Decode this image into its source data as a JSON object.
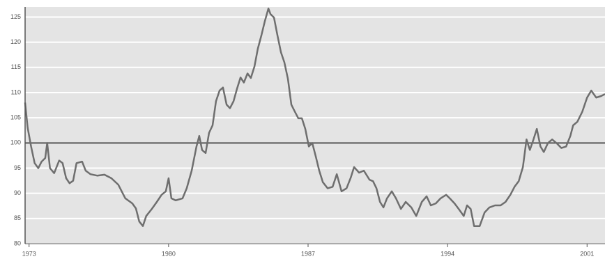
{
  "chart_data": {
    "type": "line",
    "x": [
      1972.8,
      1972.93,
      1973.1,
      1973.28,
      1973.46,
      1973.63,
      1973.81,
      1973.91,
      1974.05,
      1974.26,
      1974.51,
      1974.68,
      1974.86,
      1975.03,
      1975.21,
      1975.38,
      1975.66,
      1975.84,
      1976.08,
      1976.43,
      1976.78,
      1977.13,
      1977.48,
      1977.83,
      1978.18,
      1978.36,
      1978.53,
      1978.71,
      1978.88,
      1979.16,
      1979.41,
      1979.65,
      1979.86,
      1980.0,
      1980.14,
      1980.35,
      1980.7,
      1980.91,
      1981.16,
      1981.4,
      1981.54,
      1981.68,
      1981.86,
      1982.03,
      1982.21,
      1982.38,
      1982.56,
      1982.73,
      1982.91,
      1983.08,
      1983.26,
      1983.43,
      1983.61,
      1983.78,
      1983.96,
      1984.13,
      1984.31,
      1984.48,
      1984.66,
      1984.83,
      1985.01,
      1985.11,
      1985.29,
      1985.46,
      1985.64,
      1985.81,
      1985.99,
      1986.16,
      1986.34,
      1986.51,
      1986.69,
      1986.86,
      1987.04,
      1987.21,
      1987.39,
      1987.56,
      1987.74,
      1987.98,
      1988.23,
      1988.44,
      1988.68,
      1988.93,
      1989.14,
      1989.31,
      1989.56,
      1989.8,
      1990.08,
      1990.26,
      1990.43,
      1990.61,
      1990.78,
      1990.96,
      1991.2,
      1991.41,
      1991.66,
      1991.9,
      1992.18,
      1992.43,
      1992.71,
      1992.95,
      1993.16,
      1993.41,
      1993.65,
      1993.93,
      1994.11,
      1994.35,
      1994.56,
      1994.81,
      1994.98,
      1995.16,
      1995.33,
      1995.61,
      1995.86,
      1996.1,
      1996.38,
      1996.66,
      1996.91,
      1997.15,
      1997.36,
      1997.57,
      1997.78,
      1997.96,
      1998.13,
      1998.31,
      1998.48,
      1998.66,
      1998.83,
      1999.04,
      1999.25,
      1999.46,
      1999.71,
      1999.95,
      2000.16,
      2000.3,
      2000.51,
      2000.76,
      2001.0,
      2001.21,
      2001.46,
      2001.7,
      2001.9
    ],
    "series": [
      {
        "color": "#6e6e6e",
        "values": [
          108,
          103,
          99.3,
          96,
          95,
          96.3,
          97,
          100,
          95,
          94,
          96.5,
          96,
          93,
          92,
          92.5,
          96,
          96.3,
          94.5,
          93.8,
          93.5,
          93.7,
          93,
          91.7,
          89,
          88,
          87,
          84.4,
          83.5,
          85.5,
          86.9,
          88.3,
          89.7,
          90.4,
          93,
          89,
          88.6,
          89,
          91,
          94.5,
          99.3,
          101.4,
          98.6,
          98,
          102,
          103.5,
          108.3,
          110.4,
          111,
          107.6,
          106.9,
          108.3,
          110.7,
          113,
          112,
          113.8,
          112.9,
          115.2,
          118.7,
          121.4,
          124.2,
          126.7,
          125.6,
          124.9,
          121.4,
          118,
          116,
          112.7,
          107.6,
          106.2,
          104.9,
          104.9,
          102.8,
          99.3,
          100,
          97.3,
          94.5,
          92.2,
          91,
          91.3,
          93.8,
          90.4,
          91,
          93.1,
          95.2,
          94.1,
          94.5,
          92.7,
          92.4,
          91,
          88.3,
          87.2,
          89,
          90.4,
          89,
          86.9,
          88.3,
          87.2,
          85.5,
          88.3,
          89.4,
          87.6,
          88,
          89,
          89.7,
          89,
          88,
          86.9,
          85.5,
          87.6,
          86.9,
          83.5,
          83.5,
          86.2,
          87.2,
          87.6,
          87.6,
          88.3,
          89.7,
          91.3,
          92.4,
          95.2,
          100.7,
          98.6,
          100.7,
          102.8,
          99.3,
          98.2,
          100,
          100.7,
          100,
          99,
          99.3,
          101.4,
          103.5,
          104.2,
          106.2,
          109,
          110.4,
          109,
          109.3,
          109.7
        ]
      }
    ],
    "xlim": [
      1972.8,
      2001.9
    ],
    "xticks": [
      1973,
      1980,
      1987,
      1994,
      2001
    ],
    "ylim": [
      80,
      127
    ],
    "yticks": [
      80,
      85,
      90,
      95,
      100,
      105,
      110,
      115,
      120,
      125
    ],
    "reference_value": 100,
    "grid": true
  }
}
